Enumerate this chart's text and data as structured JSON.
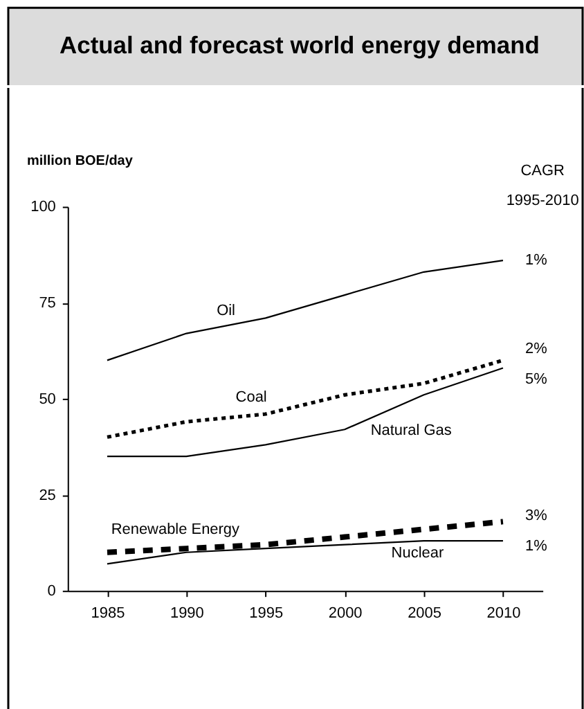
{
  "chart_data": {
    "type": "line",
    "title": "Actual and forecast world energy demand",
    "ylabel": "million BOE/day",
    "categories": [
      "1985",
      "1990",
      "1995",
      "2000",
      "2005",
      "2010"
    ],
    "ylim": [
      0,
      100
    ],
    "yticks": [
      0,
      25,
      50,
      75,
      100
    ],
    "grid": false,
    "marker": "none",
    "series": [
      {
        "name": "Oil",
        "color": "#000000",
        "line_style": "solid",
        "values": [
          60,
          67,
          71,
          77,
          83,
          86
        ]
      },
      {
        "name": "Coal",
        "color": "#000000",
        "line_style": "dotted",
        "values": [
          40,
          44,
          46,
          51,
          54,
          60
        ]
      },
      {
        "name": "Natural Gas",
        "color": "#000000",
        "line_style": "solid",
        "values": [
          35,
          35,
          38,
          42,
          51,
          58
        ]
      },
      {
        "name": "Renewable Energy",
        "color": "#000000",
        "line_style": "dashed",
        "values": [
          10,
          11,
          12,
          14,
          16,
          18
        ]
      },
      {
        "name": "Nuclear",
        "color": "#000000",
        "line_style": "solid",
        "values": [
          7,
          10,
          11,
          12,
          13,
          13
        ]
      }
    ],
    "annotations": [
      "CAGR\n1995-2010",
      {
        "text": "1%",
        "x": "2010",
        "y": 86
      },
      {
        "text": "2%",
        "x": "2010",
        "y": 60
      },
      {
        "text": "5%",
        "x": "2010",
        "y": 58
      },
      {
        "text": "3%",
        "x": "2010",
        "y": 18
      },
      {
        "text": "1%",
        "x": "2010",
        "y": 13
      }
    ]
  }
}
